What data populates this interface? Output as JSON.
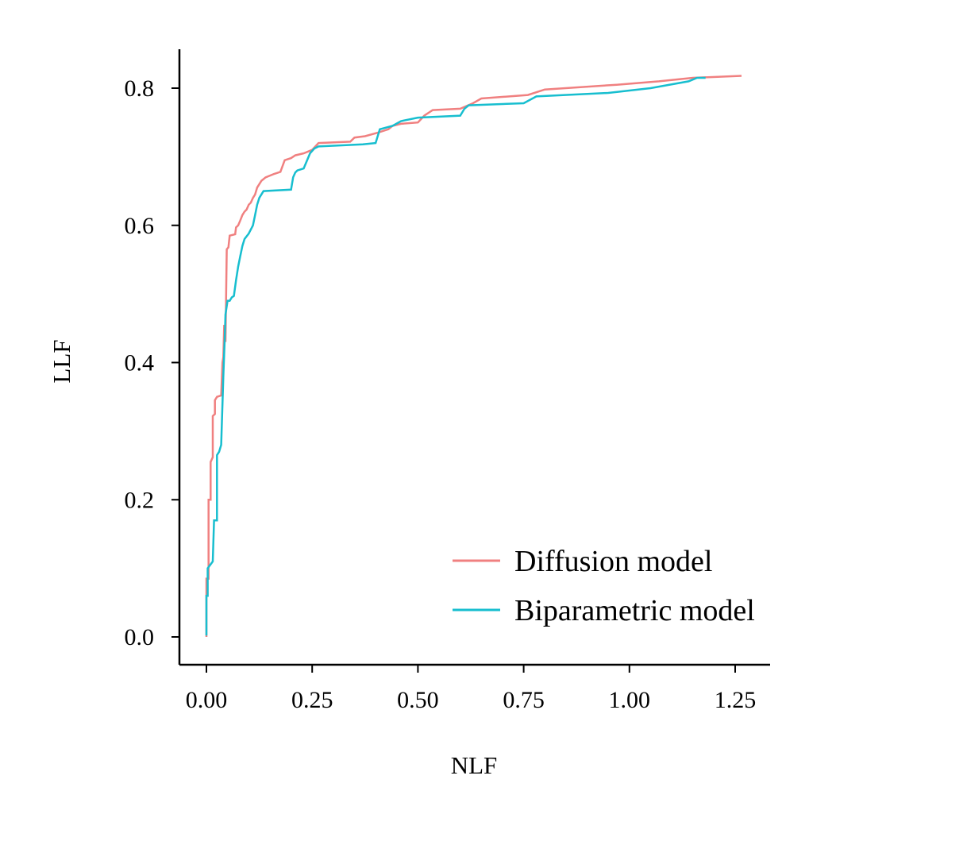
{
  "chart_data": {
    "type": "line",
    "xlabel": "NLF",
    "ylabel": "LLF",
    "xlim": [
      0,
      1.25
    ],
    "ylim": [
      0,
      0.8
    ],
    "xticks": [
      "0.00",
      "0.25",
      "0.50",
      "0.75",
      "1.00",
      "1.25"
    ],
    "yticks": [
      "0.0",
      "0.2",
      "0.4",
      "0.6",
      "0.8"
    ],
    "grid": false,
    "legend_position": "bottom-right",
    "series": [
      {
        "name": "Diffusion model",
        "color": "#F08080",
        "points": [
          [
            0.0,
            0.0
          ],
          [
            0.0,
            0.085
          ],
          [
            0.005,
            0.085
          ],
          [
            0.005,
            0.2
          ],
          [
            0.01,
            0.2
          ],
          [
            0.01,
            0.255
          ],
          [
            0.015,
            0.262
          ],
          [
            0.015,
            0.322
          ],
          [
            0.02,
            0.325
          ],
          [
            0.02,
            0.345
          ],
          [
            0.025,
            0.35
          ],
          [
            0.035,
            0.352
          ],
          [
            0.038,
            0.4
          ],
          [
            0.04,
            0.408
          ],
          [
            0.042,
            0.455
          ],
          [
            0.045,
            0.43
          ],
          [
            0.048,
            0.565
          ],
          [
            0.052,
            0.568
          ],
          [
            0.055,
            0.585
          ],
          [
            0.068,
            0.587
          ],
          [
            0.07,
            0.597
          ],
          [
            0.075,
            0.6
          ],
          [
            0.08,
            0.607
          ],
          [
            0.085,
            0.615
          ],
          [
            0.09,
            0.62
          ],
          [
            0.095,
            0.623
          ],
          [
            0.1,
            0.63
          ],
          [
            0.105,
            0.633
          ],
          [
            0.11,
            0.64
          ],
          [
            0.115,
            0.645
          ],
          [
            0.12,
            0.655
          ],
          [
            0.13,
            0.665
          ],
          [
            0.14,
            0.67
          ],
          [
            0.16,
            0.675
          ],
          [
            0.175,
            0.678
          ],
          [
            0.185,
            0.695
          ],
          [
            0.2,
            0.698
          ],
          [
            0.21,
            0.702
          ],
          [
            0.23,
            0.705
          ],
          [
            0.25,
            0.71
          ],
          [
            0.265,
            0.72
          ],
          [
            0.34,
            0.722
          ],
          [
            0.35,
            0.728
          ],
          [
            0.375,
            0.73
          ],
          [
            0.405,
            0.735
          ],
          [
            0.43,
            0.74
          ],
          [
            0.44,
            0.745
          ],
          [
            0.46,
            0.748
          ],
          [
            0.5,
            0.75
          ],
          [
            0.515,
            0.76
          ],
          [
            0.535,
            0.768
          ],
          [
            0.6,
            0.77
          ],
          [
            0.63,
            0.778
          ],
          [
            0.65,
            0.785
          ],
          [
            0.76,
            0.79
          ],
          [
            0.8,
            0.798
          ],
          [
            0.97,
            0.805
          ],
          [
            1.07,
            0.81
          ],
          [
            1.15,
            0.815
          ],
          [
            1.265,
            0.818
          ]
        ]
      },
      {
        "name": "Biparametric model",
        "color": "#17BECF",
        "points": [
          [
            0.0,
            0.002
          ],
          [
            0.0,
            0.06
          ],
          [
            0.003,
            0.06
          ],
          [
            0.003,
            0.1
          ],
          [
            0.015,
            0.11
          ],
          [
            0.018,
            0.17
          ],
          [
            0.025,
            0.17
          ],
          [
            0.025,
            0.265
          ],
          [
            0.03,
            0.27
          ],
          [
            0.035,
            0.28
          ],
          [
            0.04,
            0.38
          ],
          [
            0.043,
            0.43
          ],
          [
            0.045,
            0.47
          ],
          [
            0.05,
            0.49
          ],
          [
            0.055,
            0.49
          ],
          [
            0.06,
            0.495
          ],
          [
            0.065,
            0.497
          ],
          [
            0.07,
            0.52
          ],
          [
            0.075,
            0.54
          ],
          [
            0.08,
            0.555
          ],
          [
            0.085,
            0.57
          ],
          [
            0.09,
            0.58
          ],
          [
            0.1,
            0.588
          ],
          [
            0.11,
            0.6
          ],
          [
            0.115,
            0.615
          ],
          [
            0.12,
            0.63
          ],
          [
            0.125,
            0.64
          ],
          [
            0.135,
            0.65
          ],
          [
            0.2,
            0.652
          ],
          [
            0.205,
            0.67
          ],
          [
            0.21,
            0.677
          ],
          [
            0.215,
            0.68
          ],
          [
            0.23,
            0.683
          ],
          [
            0.245,
            0.705
          ],
          [
            0.255,
            0.712
          ],
          [
            0.265,
            0.715
          ],
          [
            0.37,
            0.718
          ],
          [
            0.4,
            0.72
          ],
          [
            0.41,
            0.74
          ],
          [
            0.44,
            0.745
          ],
          [
            0.46,
            0.752
          ],
          [
            0.5,
            0.757
          ],
          [
            0.6,
            0.76
          ],
          [
            0.61,
            0.77
          ],
          [
            0.62,
            0.775
          ],
          [
            0.75,
            0.778
          ],
          [
            0.78,
            0.788
          ],
          [
            0.95,
            0.793
          ],
          [
            1.05,
            0.8
          ],
          [
            1.14,
            0.81
          ],
          [
            1.16,
            0.815
          ],
          [
            1.18,
            0.815
          ]
        ]
      }
    ]
  }
}
